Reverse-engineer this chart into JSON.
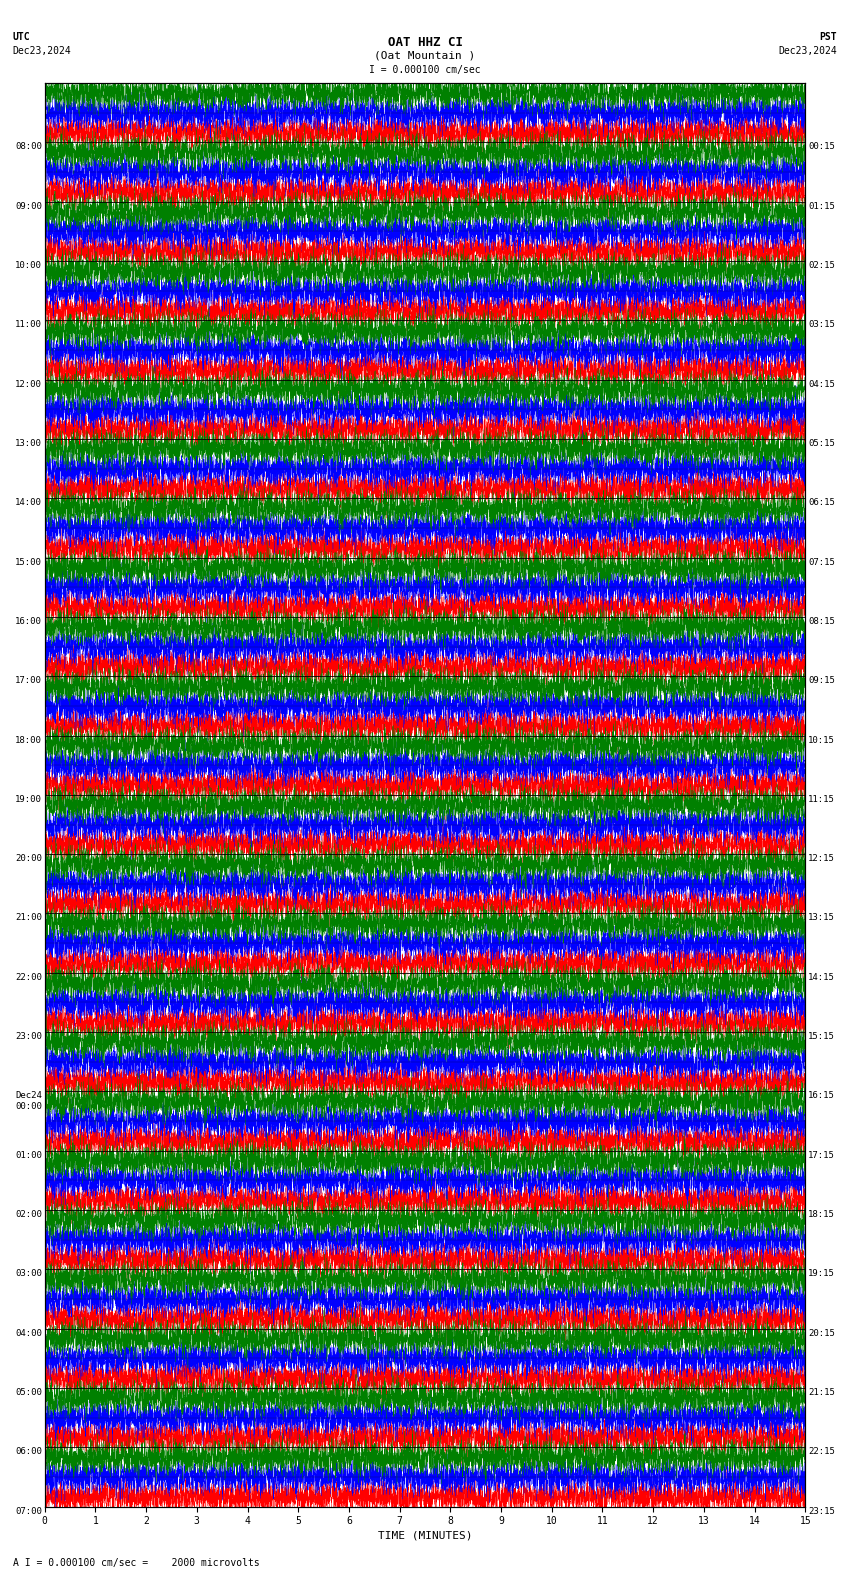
{
  "title_line1": "OAT HHZ CI",
  "title_line2": "(Oat Mountain )",
  "scale_label": "I = 0.000100 cm/sec",
  "bottom_label": "A I = 0.000100 cm/sec =    2000 microvolts",
  "utc_label": "UTC",
  "utc_date": "Dec23,2024",
  "pst_label": "PST",
  "pst_date": "Dec23,2024",
  "xlabel": "TIME (MINUTES)",
  "left_times": [
    "08:00",
    "09:00",
    "10:00",
    "11:00",
    "12:00",
    "13:00",
    "14:00",
    "15:00",
    "16:00",
    "17:00",
    "18:00",
    "19:00",
    "20:00",
    "21:00",
    "22:00",
    "23:00",
    "Dec24\n00:00",
    "01:00",
    "02:00",
    "03:00",
    "04:00",
    "05:00",
    "06:00",
    "07:00"
  ],
  "right_times": [
    "00:15",
    "01:15",
    "02:15",
    "03:15",
    "04:15",
    "05:15",
    "06:15",
    "07:15",
    "08:15",
    "09:15",
    "10:15",
    "11:15",
    "12:15",
    "13:15",
    "14:15",
    "15:15",
    "16:15",
    "17:15",
    "18:15",
    "19:15",
    "20:15",
    "21:15",
    "22:15",
    "23:15"
  ],
  "n_rows": 24,
  "minutes_per_row": 15,
  "bg_color": "#ffffff",
  "colors": [
    "#ff0000",
    "#0000ff",
    "#008000",
    "#000000"
  ],
  "seed": 42,
  "samples_per_row": 9000,
  "n_subrows": 3,
  "amplitude": 0.42
}
